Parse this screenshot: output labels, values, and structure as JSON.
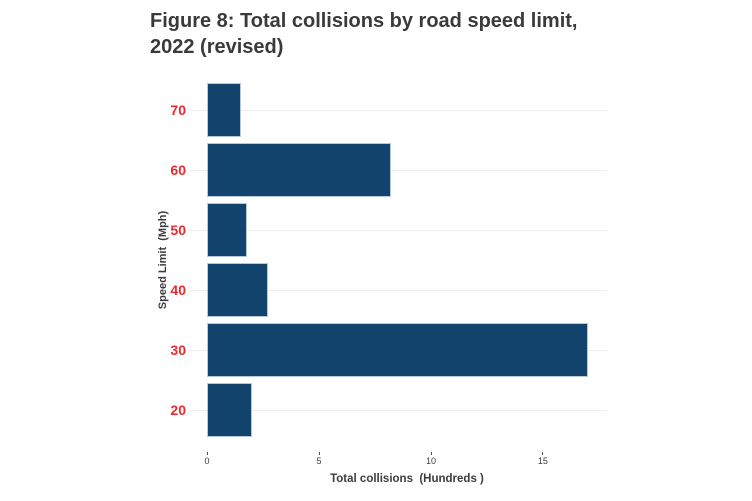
{
  "figure": {
    "title_line1": "Figure 8: Total collisions by road speed limit,",
    "title_line2": "2022 (revised)"
  },
  "chart_data": {
    "type": "bar",
    "orientation": "horizontal",
    "title": "Figure 8: Total collisions by road speed limit, 2022 (revised)",
    "categories": [
      "70",
      "60",
      "50",
      "40",
      "30",
      "20"
    ],
    "values": [
      1.5,
      8.2,
      1.8,
      2.7,
      17.0,
      2.0
    ],
    "xlabel": "Total collisions  (Hundreds )",
    "ylabel": "Speed Limit  (Mph)",
    "xlim": [
      0,
      17.86
    ],
    "x_tick_labels": [
      "0",
      "5",
      "10",
      "15"
    ],
    "x_tick_values": [
      0,
      5,
      10,
      15
    ],
    "grid": "horizontal gridline per category, light gray",
    "legend": "none",
    "colors": {
      "bar_fill": "#12436d",
      "bar_border": "#b5c7e0",
      "y_tick_label": "#ed2830",
      "axis_text": "#3c3c3c",
      "gridline": "#ededed",
      "title_text": "#3a3a3a"
    }
  }
}
